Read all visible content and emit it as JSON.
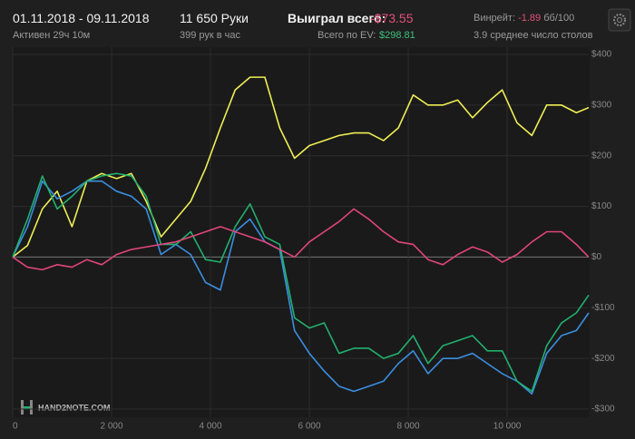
{
  "header": {
    "dates": "01.11.2018 - 09.11.2018",
    "active": "Активен 29ч 10м",
    "hands": "11 650 Руки",
    "rate": "399 рук в час",
    "won_label": "Выиграл всего:",
    "won_value": "-$73.55",
    "ev_label": "Всего по EV:",
    "ev_value": "$298.81",
    "winrate_label": "Винрейт:",
    "winrate_value": "-1.89",
    "winrate_unit": "бб/100",
    "tables": "3.9 среднее число столов",
    "logo": "HAND2NOTE.COM"
  },
  "chart_data": {
    "type": "line",
    "x": [
      0,
      300,
      600,
      900,
      1200,
      1500,
      1800,
      2100,
      2400,
      2700,
      3000,
      3300,
      3600,
      3900,
      4200,
      4500,
      4800,
      5100,
      5400,
      5700,
      6000,
      6300,
      6600,
      6900,
      7200,
      7500,
      7800,
      8100,
      8400,
      8700,
      9000,
      9300,
      9600,
      9900,
      10200,
      10500,
      10800,
      11100,
      11400,
      11650
    ],
    "series": [
      {
        "color": "#eeee55",
        "values": [
          0,
          23,
          95,
          130,
          60,
          150,
          165,
          155,
          165,
          110,
          40,
          75,
          110,
          175,
          255,
          330,
          355,
          355,
          255,
          195,
          220,
          230,
          240,
          245,
          245,
          230,
          255,
          320,
          300,
          300,
          310,
          275,
          305,
          330,
          265,
          240,
          300,
          300,
          285,
          295
        ]
      },
      {
        "color": "#3b8ee0",
        "values": [
          0,
          60,
          150,
          115,
          130,
          150,
          150,
          130,
          120,
          95,
          5,
          25,
          5,
          -50,
          -65,
          50,
          75,
          30,
          15,
          -145,
          -190,
          -225,
          -255,
          -265,
          -255,
          -245,
          -210,
          -185,
          -230,
          -200,
          -200,
          -190,
          -210,
          -230,
          -245,
          -270,
          -190,
          -155,
          -145,
          -110
        ]
      },
      {
        "color": "#22b06e",
        "values": [
          0,
          75,
          160,
          95,
          120,
          150,
          160,
          165,
          160,
          120,
          25,
          25,
          50,
          -5,
          -10,
          60,
          105,
          40,
          25,
          -120,
          -140,
          -130,
          -190,
          -180,
          -180,
          -200,
          -190,
          -155,
          -210,
          -175,
          -165,
          -155,
          -185,
          -185,
          -245,
          -265,
          -175,
          -130,
          -110,
          -75
        ]
      },
      {
        "color": "#e0457b",
        "values": [
          0,
          -20,
          -25,
          -15,
          -20,
          -5,
          -15,
          5,
          15,
          20,
          25,
          30,
          40,
          50,
          60,
          50,
          40,
          30,
          15,
          0,
          30,
          50,
          70,
          95,
          75,
          50,
          30,
          25,
          -5,
          -15,
          5,
          20,
          10,
          -10,
          5,
          30,
          50,
          50,
          25,
          0
        ]
      }
    ],
    "xlim": [
      0,
      11650
    ],
    "ylim": [
      -300,
      400
    ],
    "xticks": [
      0,
      {
        "value": 2000,
        "label": "2 000"
      },
      {
        "value": 4000,
        "label": "4 000"
      },
      {
        "value": 6000,
        "label": "6 000"
      },
      {
        "value": 8000,
        "label": "8 000"
      },
      {
        "value": 10000,
        "label": "10 000"
      }
    ],
    "yticks": [
      {
        "value": 400,
        "label": "$400"
      },
      {
        "value": 300,
        "label": "$300"
      },
      {
        "value": 200,
        "label": "$200"
      },
      {
        "value": 100,
        "label": "$100"
      },
      {
        "value": 0,
        "label": "$0"
      },
      {
        "value": -100,
        "label": "-$100"
      },
      {
        "value": -200,
        "label": "-$200"
      },
      {
        "value": -300,
        "label": "-$300"
      }
    ],
    "grid": true
  }
}
